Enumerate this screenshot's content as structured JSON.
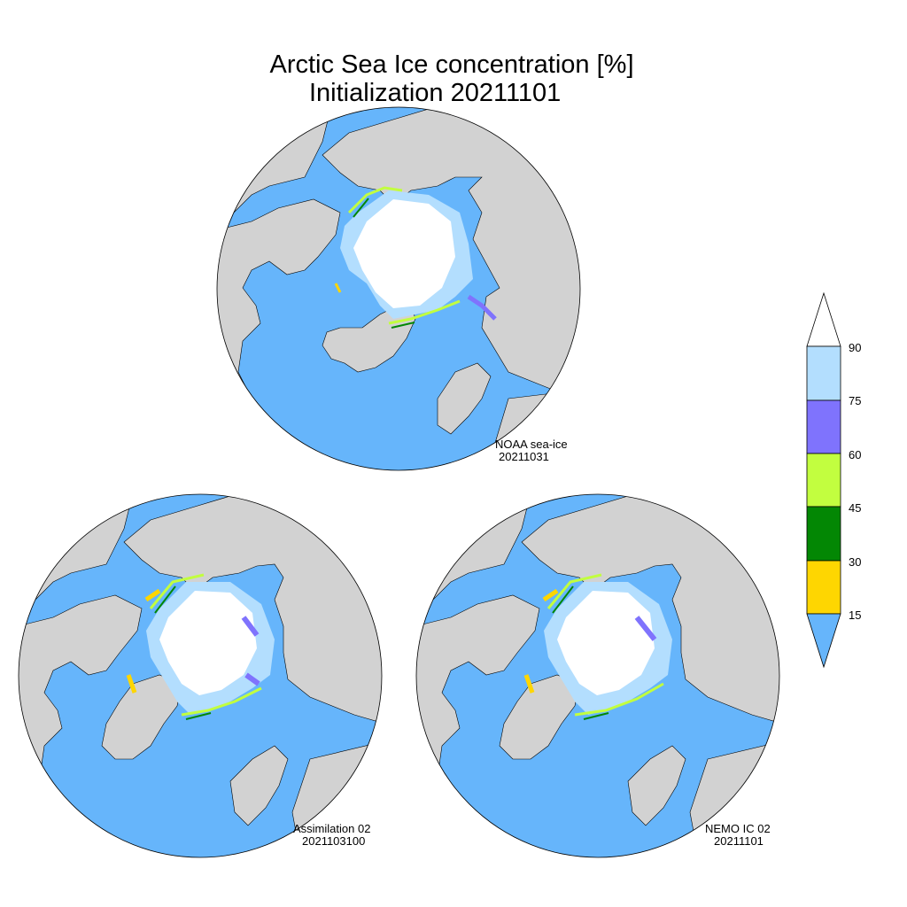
{
  "title": {
    "line1": "Arctic Sea Ice concentration [%]",
    "line2": "Initialization 20211101"
  },
  "colors": {
    "ocean": "#66b5fb",
    "land": "#d2d2d2",
    "ice_90_100": "#ffffff",
    "ice_75_90": "#b3defe",
    "ice_60_75": "#7f73fd",
    "ice_45_60": "#c2fe3f",
    "ice_30_45": "#038704",
    "ice_15_30": "#fed601",
    "ice_below_15": "#66b5fb"
  },
  "legend": {
    "ticks": [
      "90",
      "75",
      "60",
      "45",
      "30",
      "15"
    ]
  },
  "panels": [
    {
      "id": "noaa",
      "label_line1": "NOAA sea-ice",
      "label_line2": "20211031"
    },
    {
      "id": "assimilation",
      "label_line1": "Assimilation 02",
      "label_line2": "2021103100"
    },
    {
      "id": "nemo",
      "label_line1": "NEMO IC 02",
      "label_line2": "20211101"
    }
  ]
}
